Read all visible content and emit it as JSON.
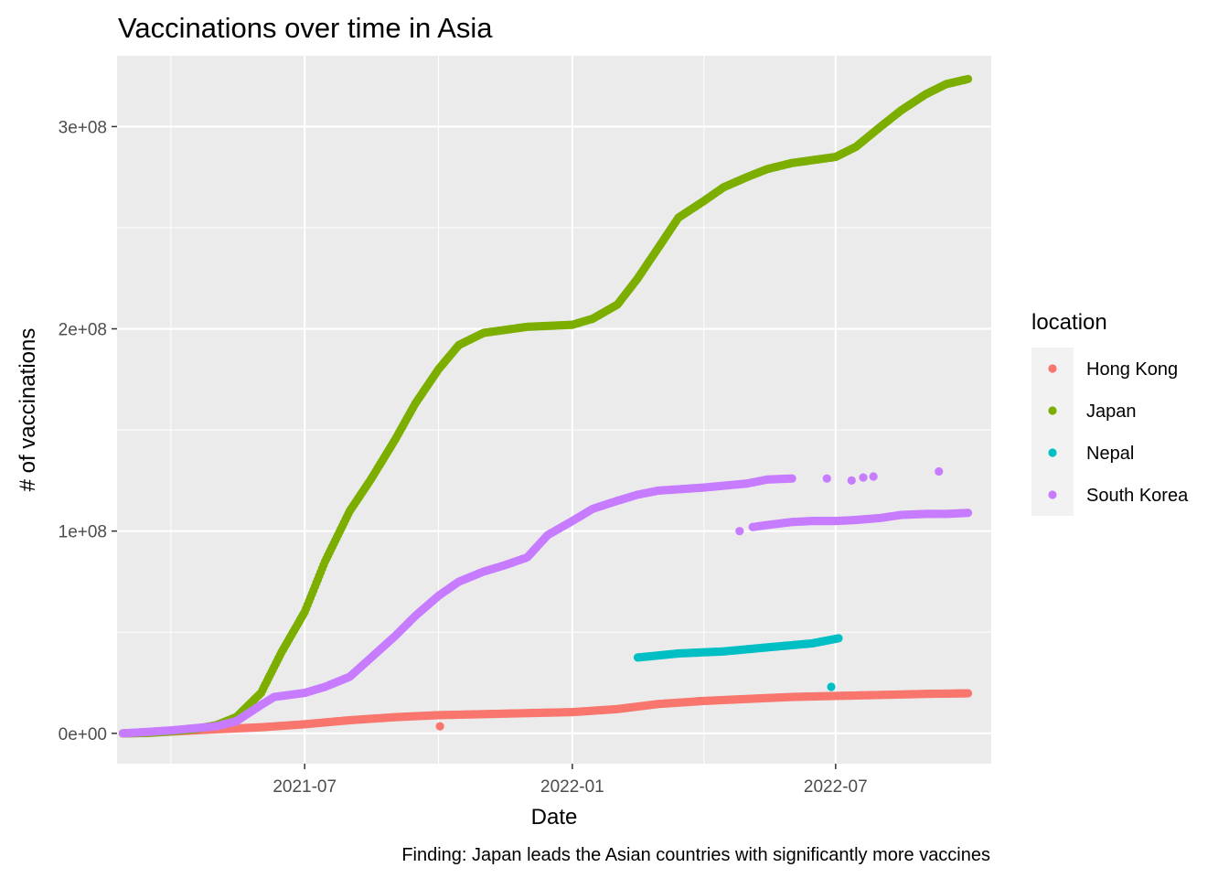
{
  "chart_data": {
    "type": "scatter",
    "title": "Vaccinations over time in Asia",
    "xlabel": "Date",
    "ylabel": "# of vaccinations",
    "caption": "Finding: Japan leads the Asian countries with significantly more vaccines",
    "legend_title": "location",
    "legend_position": "right",
    "grid": true,
    "background_color": "#EBEBEB",
    "x_axis": {
      "type": "date",
      "range": [
        "2021-02-22",
        "2022-10-16"
      ],
      "ticks": [
        "2021-07-01",
        "2022-01-01",
        "2022-07-01"
      ],
      "tick_labels": [
        "2021-07",
        "2022-01",
        "2022-07"
      ]
    },
    "y_axis": {
      "range": [
        -15000000,
        335000000
      ],
      "ticks": [
        0,
        100000000,
        200000000,
        300000000
      ],
      "tick_labels": [
        "0e+00",
        "1e+08",
        "2e+08",
        "3e+08"
      ]
    },
    "series": [
      {
        "name": "Hong Kong",
        "color": "#F8766D",
        "points": [
          [
            "2021-02-26",
            0
          ],
          [
            "2021-03-15",
            300000
          ],
          [
            "2021-04-01",
            900000
          ],
          [
            "2021-05-01",
            2000000
          ],
          [
            "2021-06-01",
            3000000
          ],
          [
            "2021-07-01",
            4500000
          ],
          [
            "2021-08-01",
            6500000
          ],
          [
            "2021-09-01",
            8000000
          ],
          [
            "2021-10-01",
            9000000
          ],
          [
            "2021-11-01",
            9500000
          ],
          [
            "2021-12-01",
            10000000
          ],
          [
            "2022-01-01",
            10500000
          ],
          [
            "2022-02-01",
            12000000
          ],
          [
            "2022-03-01",
            14500000
          ],
          [
            "2022-04-01",
            16000000
          ],
          [
            "2022-05-01",
            17000000
          ],
          [
            "2022-06-01",
            18000000
          ],
          [
            "2022-07-01",
            18500000
          ],
          [
            "2022-08-01",
            19000000
          ],
          [
            "2022-09-01",
            19500000
          ],
          [
            "2022-09-30",
            19800000
          ]
        ],
        "outliers": [
          [
            "2021-10-02",
            3500000
          ]
        ]
      },
      {
        "name": "Japan",
        "color": "#7CAE00",
        "points": [
          [
            "2021-02-26",
            0
          ],
          [
            "2021-03-15",
            200000
          ],
          [
            "2021-04-01",
            1000000
          ],
          [
            "2021-04-15",
            2000000
          ],
          [
            "2021-05-01",
            4000000
          ],
          [
            "2021-05-15",
            8000000
          ],
          [
            "2021-06-01",
            20000000
          ],
          [
            "2021-06-15",
            40000000
          ],
          [
            "2021-07-01",
            60000000
          ],
          [
            "2021-07-15",
            85000000
          ],
          [
            "2021-08-01",
            110000000
          ],
          [
            "2021-08-15",
            125000000
          ],
          [
            "2021-09-01",
            145000000
          ],
          [
            "2021-09-15",
            163000000
          ],
          [
            "2021-10-01",
            180000000
          ],
          [
            "2021-10-15",
            192000000
          ],
          [
            "2021-11-01",
            198000000
          ],
          [
            "2021-12-01",
            201000000
          ],
          [
            "2022-01-01",
            202000000
          ],
          [
            "2022-01-15",
            205000000
          ],
          [
            "2022-02-01",
            212000000
          ],
          [
            "2022-02-15",
            225000000
          ],
          [
            "2022-03-01",
            240000000
          ],
          [
            "2022-03-15",
            255000000
          ],
          [
            "2022-04-01",
            263000000
          ],
          [
            "2022-04-15",
            270000000
          ],
          [
            "2022-05-01",
            275000000
          ],
          [
            "2022-05-15",
            279000000
          ],
          [
            "2022-06-01",
            282000000
          ],
          [
            "2022-07-01",
            285000000
          ],
          [
            "2022-07-15",
            290000000
          ],
          [
            "2022-08-01",
            300000000
          ],
          [
            "2022-08-15",
            308000000
          ],
          [
            "2022-09-01",
            316000000
          ],
          [
            "2022-09-15",
            321000000
          ],
          [
            "2022-09-30",
            323500000
          ]
        ],
        "outliers": []
      },
      {
        "name": "Nepal",
        "color": "#00BFC4",
        "points": [
          [
            "2022-02-15",
            37500000
          ],
          [
            "2022-03-15",
            39500000
          ],
          [
            "2022-04-15",
            40500000
          ],
          [
            "2022-05-15",
            42500000
          ],
          [
            "2022-06-15",
            44500000
          ],
          [
            "2022-07-03",
            47000000
          ]
        ],
        "outliers": [
          [
            "2022-06-28",
            23000000
          ]
        ]
      },
      {
        "name": "South Korea",
        "color": "#C77CFF",
        "points": [
          [
            "2021-02-26",
            0
          ],
          [
            "2021-03-15",
            700000
          ],
          [
            "2021-04-01",
            1500000
          ],
          [
            "2021-05-01",
            3500000
          ],
          [
            "2021-05-15",
            6000000
          ],
          [
            "2021-06-01",
            14000000
          ],
          [
            "2021-06-10",
            18000000
          ],
          [
            "2021-07-01",
            20000000
          ],
          [
            "2021-07-15",
            23000000
          ],
          [
            "2021-08-01",
            28000000
          ],
          [
            "2021-08-15",
            37000000
          ],
          [
            "2021-09-01",
            48000000
          ],
          [
            "2021-09-15",
            58000000
          ],
          [
            "2021-10-01",
            68000000
          ],
          [
            "2021-10-15",
            75000000
          ],
          [
            "2021-11-01",
            80000000
          ],
          [
            "2021-11-15",
            83000000
          ],
          [
            "2021-12-01",
            87000000
          ],
          [
            "2021-12-15",
            98000000
          ],
          [
            "2022-01-01",
            105000000
          ],
          [
            "2022-01-15",
            111000000
          ],
          [
            "2022-02-01",
            115000000
          ],
          [
            "2022-02-15",
            118000000
          ],
          [
            "2022-03-01",
            120000000
          ],
          [
            "2022-04-01",
            121500000
          ],
          [
            "2022-05-01",
            123500000
          ],
          [
            "2022-05-15",
            125500000
          ],
          [
            "2022-06-01",
            126000000
          ]
        ],
        "lower_points": [
          [
            "2022-05-05",
            102000000
          ],
          [
            "2022-05-15",
            103000000
          ],
          [
            "2022-06-01",
            104500000
          ],
          [
            "2022-06-15",
            105000000
          ],
          [
            "2022-07-01",
            105000000
          ],
          [
            "2022-07-15",
            105500000
          ],
          [
            "2022-08-01",
            106500000
          ],
          [
            "2022-08-15",
            108000000
          ],
          [
            "2022-09-01",
            108500000
          ],
          [
            "2022-09-15",
            108500000
          ],
          [
            "2022-09-30",
            109000000
          ]
        ],
        "outliers": [
          [
            "2022-04-26",
            100000000
          ],
          [
            "2022-06-25",
            126000000
          ],
          [
            "2022-07-12",
            125000000
          ],
          [
            "2022-07-20",
            126500000
          ],
          [
            "2022-07-27",
            127000000
          ],
          [
            "2022-09-10",
            129500000
          ]
        ]
      }
    ]
  }
}
